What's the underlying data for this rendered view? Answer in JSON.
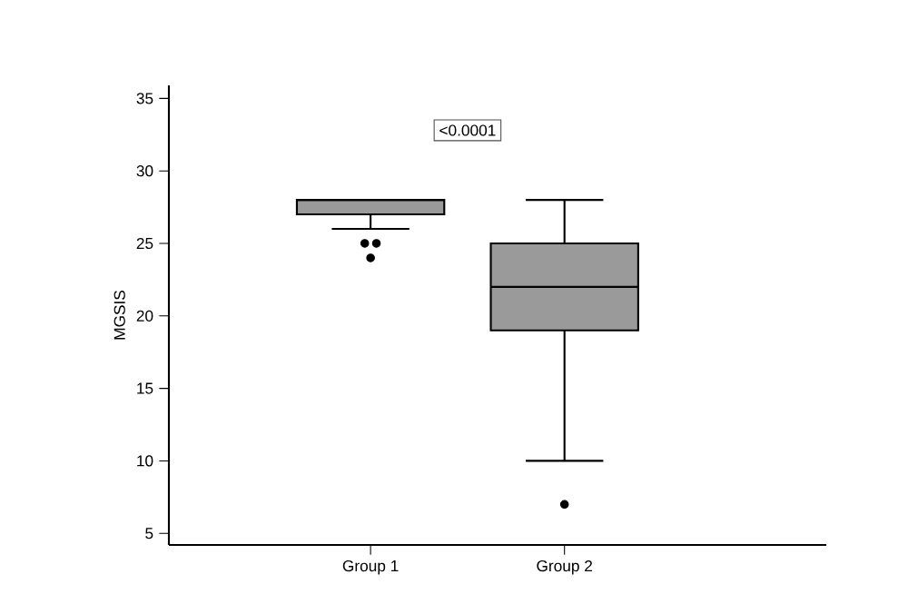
{
  "chart_data": {
    "type": "box",
    "ylabel": "MGSIS",
    "categories": [
      "Group 1",
      "Group 2"
    ],
    "color": "#9a9a9a",
    "boxes": [
      {
        "low": 26,
        "q1": 27,
        "median": 28,
        "q3": 28,
        "high": 28,
        "outliers": [
          25,
          25,
          24
        ]
      },
      {
        "low": 10,
        "q1": 19,
        "median": 22,
        "q3": 25,
        "high": 28,
        "outliers": [
          7
        ]
      }
    ],
    "ylim": [
      4.2,
      35.9
    ],
    "yticks": [
      5,
      10,
      15,
      20,
      25,
      30,
      35
    ],
    "annotations": [
      "<0.0001"
    ]
  }
}
